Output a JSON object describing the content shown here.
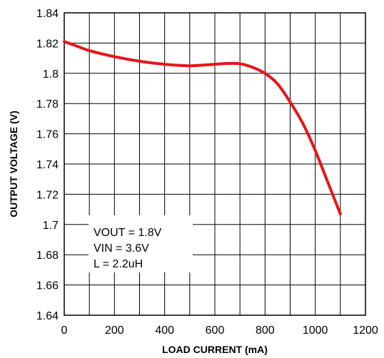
{
  "chart_data": {
    "type": "line",
    "title": "",
    "xlabel": "LOAD CURRENT (mA)",
    "ylabel": "OUTPUT VOLTAGE (V)",
    "xlim": [
      0,
      1200
    ],
    "ylim": [
      1.64,
      1.84
    ],
    "xticks": [
      0,
      100,
      200,
      300,
      400,
      500,
      600,
      700,
      800,
      900,
      1000,
      1100,
      1200
    ],
    "xtick_labels": [
      "0",
      "200",
      "400",
      "600",
      "800",
      "1000",
      "1200"
    ],
    "xtick_label_values": [
      0,
      200,
      400,
      600,
      800,
      1000,
      1200
    ],
    "yticks": [
      1.64,
      1.66,
      1.68,
      1.7,
      1.72,
      1.74,
      1.76,
      1.78,
      1.8,
      1.82,
      1.84
    ],
    "ytick_labels": [
      "1.64",
      "1.66",
      "1.68",
      "1.7",
      "1.72",
      "1.74",
      "1.76",
      "1.78",
      "1.8",
      "1.82",
      "1.84"
    ],
    "grid": true,
    "annotation": [
      "VOUT = 1.8V",
      "VIN = 3.6V",
      "L = 2.2uH"
    ],
    "series_color": "#e8141b",
    "series": [
      {
        "x": [
          0,
          50,
          100,
          200,
          300,
          400,
          500,
          600,
          650,
          700,
          750,
          800,
          850,
          900,
          950,
          1000,
          1050,
          1100
        ],
        "y": [
          1.821,
          1.818,
          1.815,
          1.811,
          1.808,
          1.806,
          1.805,
          1.806,
          1.8065,
          1.8063,
          1.804,
          1.8,
          1.793,
          1.781,
          1.767,
          1.749,
          1.728,
          1.707
        ]
      }
    ]
  }
}
